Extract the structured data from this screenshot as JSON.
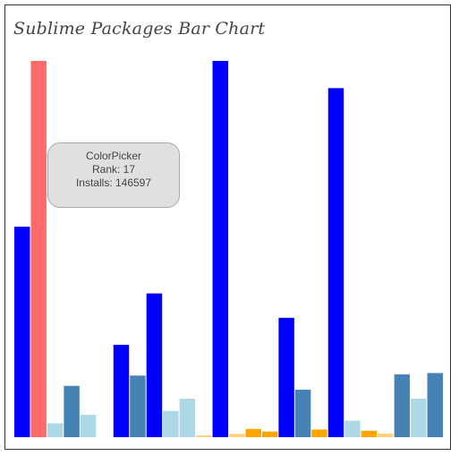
{
  "chart_data": {
    "type": "bar",
    "title": "Sublime Packages Bar Chart",
    "xlabel": "",
    "ylabel": "",
    "ylim": [
      0,
      146597
    ],
    "grid": false,
    "legend": "none",
    "bars": [
      {
        "value": 82000,
        "color": "#0000ff"
      },
      {
        "value": 146597,
        "color": "#ff6b6b"
      },
      {
        "value": 5400,
        "color": "#add8e6"
      },
      {
        "value": 20000,
        "color": "#4682b4"
      },
      {
        "value": 8700,
        "color": "#add8e6"
      },
      {
        "value": 0,
        "color": "#ffffff"
      },
      {
        "value": 36000,
        "color": "#0000ff"
      },
      {
        "value": 24000,
        "color": "#4682b4"
      },
      {
        "value": 56000,
        "color": "#0000ff"
      },
      {
        "value": 10200,
        "color": "#add8e6"
      },
      {
        "value": 15000,
        "color": "#add8e6"
      },
      {
        "value": 700,
        "color": "#ffd27a"
      },
      {
        "value": 146597,
        "color": "#0000ff"
      },
      {
        "value": 1300,
        "color": "#ffd27a"
      },
      {
        "value": 3200,
        "color": "#ffa500"
      },
      {
        "value": 2200,
        "color": "#ffa500"
      },
      {
        "value": 46500,
        "color": "#0000ff"
      },
      {
        "value": 18500,
        "color": "#4682b4"
      },
      {
        "value": 3000,
        "color": "#ffa500"
      },
      {
        "value": 136000,
        "color": "#0000ff"
      },
      {
        "value": 6400,
        "color": "#add8e6"
      },
      {
        "value": 2500,
        "color": "#ffa500"
      },
      {
        "value": 1400,
        "color": "#ffd27a"
      },
      {
        "value": 24500,
        "color": "#4682b4"
      },
      {
        "value": 15000,
        "color": "#add8e6"
      },
      {
        "value": 25000,
        "color": "#4682b4"
      }
    ],
    "tooltip": {
      "name": "ColorPicker",
      "rank": "Rank: 17",
      "installs": "Installs: 146597"
    }
  }
}
